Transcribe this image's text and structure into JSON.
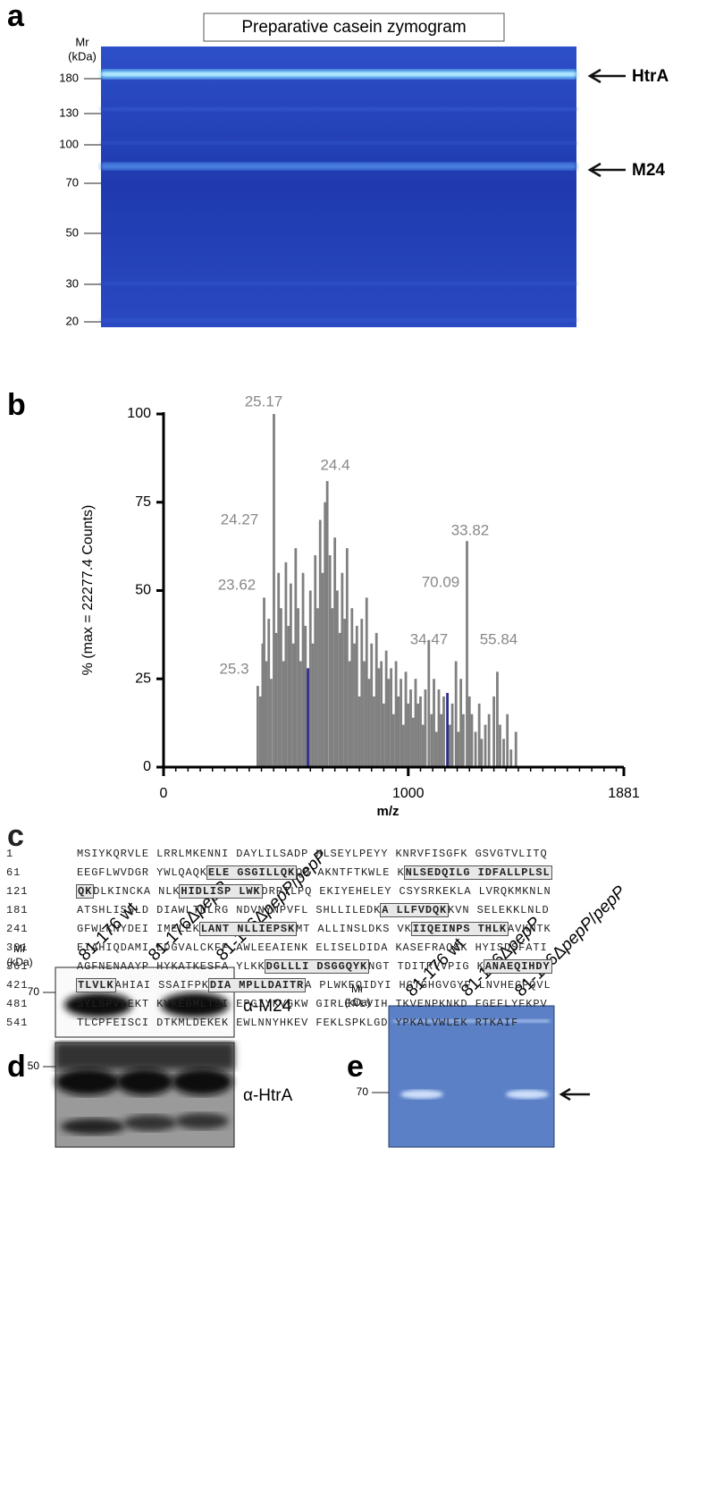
{
  "panel_a": {
    "letter": "a",
    "title": "Preparative casein zymogram",
    "mr_label": [
      "Mr",
      "(kDa)"
    ],
    "markers": [
      180,
      130,
      100,
      70,
      50,
      30,
      20
    ],
    "bands": [
      "HtrA",
      "M24"
    ]
  },
  "chart_data": {
    "letter": "b",
    "type": "bar",
    "ylabel": "% (max = 22277.4 Counts)",
    "xlabel": "m/z",
    "xlim": [
      0,
      1881
    ],
    "xticks": [
      0,
      1000,
      1881
    ],
    "ylim": [
      0,
      100
    ],
    "yticks": [
      0,
      25,
      50,
      75,
      100
    ],
    "series": [
      {
        "color": "#808080",
        "x": [
          385,
          395,
          405,
          411,
          420,
          430,
          440,
          451,
          460,
          470,
          480,
          490,
          500,
          510,
          520,
          530,
          540,
          550,
          560,
          570,
          580,
          600,
          610,
          620,
          630,
          640,
          650,
          660,
          669,
          680,
          690,
          700,
          710,
          720,
          730,
          740,
          750,
          760,
          770,
          780,
          790,
          800,
          810,
          820,
          830,
          840,
          850,
          860,
          870,
          880,
          890,
          900,
          910,
          920,
          930,
          940,
          950,
          960,
          970,
          980,
          990,
          1000,
          1010,
          1020,
          1030,
          1040,
          1050,
          1060,
          1070,
          1084,
          1095,
          1105,
          1115,
          1125,
          1135,
          1145,
          1170,
          1180,
          1195,
          1205,
          1215,
          1225,
          1240,
          1250,
          1260,
          1275,
          1290,
          1300,
          1315,
          1330,
          1350,
          1364,
          1375,
          1390,
          1405,
          1420,
          1440
        ],
        "values": [
          23,
          20,
          35,
          48,
          30,
          42,
          25,
          100,
          38,
          55,
          45,
          30,
          58,
          40,
          52,
          35,
          62,
          45,
          30,
          55,
          40,
          50,
          35,
          60,
          45,
          70,
          55,
          75,
          81,
          60,
          45,
          65,
          50,
          38,
          55,
          42,
          62,
          30,
          45,
          35,
          40,
          20,
          42,
          30,
          48,
          25,
          35,
          20,
          38,
          28,
          30,
          18,
          33,
          25,
          28,
          15,
          30,
          20,
          25,
          12,
          27,
          18,
          22,
          14,
          25,
          18,
          20,
          12,
          22,
          36,
          15,
          25,
          10,
          22,
          15,
          20,
          12,
          18,
          30,
          10,
          25,
          15,
          64,
          20,
          15,
          10,
          18,
          8,
          12,
          15,
          20,
          27,
          12,
          8,
          15,
          5,
          10
        ]
      },
      {
        "color": "#2e2e8c",
        "x": [
          590,
          1160
        ],
        "values": [
          28,
          21
        ]
      }
    ],
    "annotations": [
      "25.17",
      "24.4",
      "24.27",
      "33.82",
      "23.62",
      "70.09",
      "34.47",
      "55.84",
      "25.3"
    ]
  },
  "panel_c": {
    "letter": "c",
    "rows": [
      {
        "num": 1,
        "parts": [
          "MSIYKQRVLE LRRLMKENNI DAYLILSADP HLSEYLPEYY KNRVFISGFK GSVGTVLITQ"
        ]
      },
      {
        "num": 61,
        "parts": [
          "EEGFLWVDGR YWLQAQK",
          "ELE GSGILLQK",
          "QD AKNTFTKWLE K",
          "NLSEDQILG IDFALLPLSL"
        ]
      },
      {
        "num": 121,
        "parts": [
          "",
          "QK",
          "DLKINCKA NLK",
          "HIDLISP LWK",
          "DRPTLPQ EKIYEHELEY CSYSRKEKLA LVRQKMKNLN"
        ]
      },
      {
        "num": 181,
        "parts": [
          "ATSHLISSLD DIAWLTNLRG NDVNYNPVFL SHLLILEDK",
          "A LLFVDQK",
          "KVN SELEKKLNLD"
        ]
      },
      {
        "num": 241,
        "parts": [
          "GFWLKNYDEI IMELEK",
          "LANT NLLIEPSK",
          "MT ALLINSLDKS VK",
          "IIQEINPS THLK",
          "AVKNTK"
        ]
      },
      {
        "num": 301,
        "parts": [
          "EIAHIQDAMI EDGVALCKFF AWLEEAIENK ELISELDIDA KASEFRAQSK HYISDSFATI"
        ]
      },
      {
        "num": 361,
        "parts": [
          "AGFNENAAYP HYKATKESFA YLKK",
          "DGLLLI DSGGQYK",
          "NGT TDITRVVPIG K",
          "ANAEQIHDY"
        ]
      },
      {
        "num": 421,
        "parts": [
          "",
          "TLVLK",
          "AHIAI SSAIFPK",
          "DIA MPLLDAITR",
          "A PLWKEQIDYI HGTGHGVGYF LNVHEGPQVL"
        ]
      },
      {
        "num": 481,
        "parts": [
          "SYLSPVLEKT KVKEGMLTSI EPGIYKVGKW GIRLENLVIH TKVENPKNKD FGEFLYFKPV"
        ]
      },
      {
        "num": 541,
        "parts": [
          "TLCPFEISCI DTKMLDEKEK EWLNNYHKEV FEKLSPKLGD YPKALVWLEK RTKAIF"
        ]
      }
    ]
  },
  "panel_d": {
    "letter": "d",
    "lanes": [
      [
        "81-176 wt"
      ],
      [
        "81-176Δ",
        "pepP"
      ],
      [
        "81-176Δ",
        "pepP",
        "/",
        "pepP"
      ]
    ],
    "mr_label": [
      "Mr",
      "(kDa)"
    ],
    "markers": [
      70,
      50
    ],
    "antibodies": [
      "α-M24",
      "α-HtrA"
    ]
  },
  "panel_e": {
    "letter": "e",
    "lanes": [
      [
        "81-176 wt"
      ],
      [
        "81-176Δ",
        "pepP"
      ],
      [
        "81-176Δ",
        "pepP",
        "/",
        "pepP"
      ]
    ],
    "mr_label": [
      "Mr",
      "(kDa)"
    ],
    "markers": [
      70
    ]
  }
}
